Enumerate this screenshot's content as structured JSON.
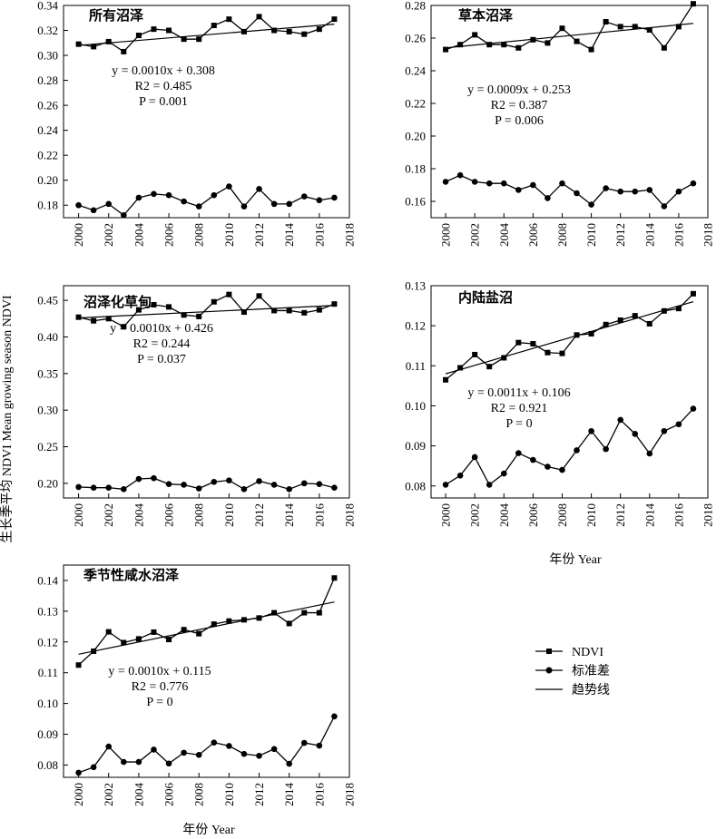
{
  "figure": {
    "ylabel": "生长季平均 NDVI Mean growing season NDVI",
    "xlabel": "年份 Year"
  },
  "legend": {
    "ndvi": "NDVI",
    "std": "标准差",
    "trend": "趋势线"
  },
  "colors": {
    "line": "#000000",
    "background": "#ffffff"
  },
  "chart_data": [
    {
      "type": "line",
      "title": "所有沼泽",
      "x": [
        2000,
        2001,
        2002,
        2003,
        2004,
        2005,
        2006,
        2007,
        2008,
        2009,
        2010,
        2011,
        2012,
        2013,
        2014,
        2015,
        2016,
        2017
      ],
      "xlim": [
        1999,
        2018
      ],
      "xticks": [
        "2000",
        "2002",
        "2004",
        "2006",
        "2008",
        "2010",
        "2012",
        "2014",
        "2016",
        "2018"
      ],
      "ylim": [
        0.17,
        0.34
      ],
      "yticks": [
        "0.18",
        "0.20",
        "0.22",
        "0.24",
        "0.26",
        "0.28",
        "0.30",
        "0.32",
        "0.34"
      ],
      "series": [
        {
          "name": "NDVI",
          "marker": "square",
          "values": [
            0.309,
            0.307,
            0.311,
            0.303,
            0.316,
            0.321,
            0.32,
            0.313,
            0.313,
            0.324,
            0.329,
            0.319,
            0.331,
            0.32,
            0.319,
            0.317,
            0.321,
            0.329
          ]
        },
        {
          "name": "标准差",
          "marker": "circle",
          "values": [
            0.18,
            0.176,
            0.181,
            0.172,
            0.186,
            0.189,
            0.188,
            0.183,
            0.179,
            0.188,
            0.195,
            0.179,
            0.193,
            0.181,
            0.181,
            0.187,
            0.184,
            0.186
          ]
        }
      ],
      "trend": {
        "x": [
          2000,
          2017
        ],
        "y": [
          0.308,
          0.325
        ]
      },
      "equation": {
        "eq": "y = 0.0010x + 0.308",
        "r2": "R2 = 0.485",
        "p": "P = 0.001"
      },
      "grid": false
    },
    {
      "type": "line",
      "title": "草本沼泽",
      "x": [
        2000,
        2001,
        2002,
        2003,
        2004,
        2005,
        2006,
        2007,
        2008,
        2009,
        2010,
        2011,
        2012,
        2013,
        2014,
        2015,
        2016,
        2017
      ],
      "xlim": [
        1999,
        2018
      ],
      "xticks": [
        "2000",
        "2002",
        "2004",
        "2006",
        "2008",
        "2010",
        "2012",
        "2014",
        "2016",
        "2018"
      ],
      "ylim": [
        0.15,
        0.28
      ],
      "yticks": [
        "0.16",
        "0.18",
        "0.20",
        "0.22",
        "0.24",
        "0.26",
        "0.28"
      ],
      "series": [
        {
          "name": "NDVI",
          "marker": "square",
          "values": [
            0.253,
            0.256,
            0.262,
            0.256,
            0.256,
            0.254,
            0.259,
            0.257,
            0.266,
            0.258,
            0.253,
            0.27,
            0.267,
            0.267,
            0.265,
            0.254,
            0.267,
            0.281
          ]
        },
        {
          "name": "标准差",
          "marker": "circle",
          "values": [
            0.172,
            0.176,
            0.172,
            0.171,
            0.171,
            0.167,
            0.17,
            0.162,
            0.171,
            0.165,
            0.158,
            0.168,
            0.166,
            0.166,
            0.167,
            0.157,
            0.166,
            0.171
          ]
        }
      ],
      "trend": {
        "x": [
          2000,
          2017
        ],
        "y": [
          0.254,
          0.269
        ]
      },
      "equation": {
        "eq": "y = 0.0009x + 0.253",
        "r2": "R2 = 0.387",
        "p": "P = 0.006"
      },
      "grid": false
    },
    {
      "type": "line",
      "title": "沼泽化草甸",
      "x": [
        2000,
        2001,
        2002,
        2003,
        2004,
        2005,
        2006,
        2007,
        2008,
        2009,
        2010,
        2011,
        2012,
        2013,
        2014,
        2015,
        2016,
        2017
      ],
      "xlim": [
        1999,
        2018
      ],
      "xticks": [
        "2000",
        "2002",
        "2004",
        "2006",
        "2008",
        "2010",
        "2012",
        "2014",
        "2016",
        "2018"
      ],
      "ylim": [
        0.18,
        0.47
      ],
      "yticks": [
        "0.20",
        "0.25",
        "0.30",
        "0.35",
        "0.40",
        "0.45"
      ],
      "series": [
        {
          "name": "NDVI",
          "marker": "square",
          "values": [
            0.427,
            0.422,
            0.425,
            0.414,
            0.437,
            0.444,
            0.441,
            0.43,
            0.428,
            0.448,
            0.458,
            0.434,
            0.456,
            0.436,
            0.436,
            0.433,
            0.437,
            0.445
          ]
        },
        {
          "name": "标准差",
          "marker": "circle",
          "values": [
            0.195,
            0.194,
            0.194,
            0.192,
            0.206,
            0.207,
            0.199,
            0.198,
            0.193,
            0.202,
            0.204,
            0.192,
            0.203,
            0.198,
            0.192,
            0.2,
            0.199,
            0.194
          ]
        }
      ],
      "trend": {
        "x": [
          2000,
          2017
        ],
        "y": [
          0.426,
          0.443
        ]
      },
      "equation": {
        "eq": "y = 0.0010x + 0.426",
        "r2": "R2 = 0.244",
        "p": "P = 0.037"
      },
      "grid": false
    },
    {
      "type": "line",
      "title": "内陆盐沼",
      "x": [
        2000,
        2001,
        2002,
        2003,
        2004,
        2005,
        2006,
        2007,
        2008,
        2009,
        2010,
        2011,
        2012,
        2013,
        2014,
        2015,
        2016,
        2017
      ],
      "xlim": [
        1999,
        2018
      ],
      "xticks": [
        "2000",
        "2002",
        "2004",
        "2006",
        "2008",
        "2010",
        "2012",
        "2014",
        "2016",
        "2018"
      ],
      "ylim": [
        0.077,
        0.13
      ],
      "yticks": [
        "0.08",
        "0.09",
        "0.10",
        "0.11",
        "0.12",
        "0.13"
      ],
      "series": [
        {
          "name": "NDVI",
          "marker": "square",
          "values": [
            0.1065,
            0.1095,
            0.1128,
            0.1098,
            0.112,
            0.1158,
            0.1155,
            0.1133,
            0.1131,
            0.1177,
            0.118,
            0.1203,
            0.1214,
            0.1225,
            0.1205,
            0.1237,
            0.1243,
            0.128
          ]
        },
        {
          "name": "标准差",
          "marker": "circle",
          "values": [
            0.0803,
            0.0826,
            0.0872,
            0.0803,
            0.0831,
            0.0882,
            0.0865,
            0.0848,
            0.084,
            0.0889,
            0.0937,
            0.0892,
            0.0965,
            0.093,
            0.0881,
            0.0937,
            0.0954,
            0.0993
          ]
        }
      ],
      "trend": {
        "x": [
          2000,
          2017
        ],
        "y": [
          0.108,
          0.126
        ]
      },
      "equation": {
        "eq": "y = 0.0011x + 0.106",
        "r2": "R2 = 0.921",
        "p": "P = 0"
      },
      "grid": false
    },
    {
      "type": "line",
      "title": "季节性咸水沼泽",
      "x": [
        2000,
        2001,
        2002,
        2003,
        2004,
        2005,
        2006,
        2007,
        2008,
        2009,
        2010,
        2011,
        2012,
        2013,
        2014,
        2015,
        2016,
        2017
      ],
      "xlim": [
        1999,
        2018
      ],
      "xticks": [
        "2000",
        "2002",
        "2004",
        "2006",
        "2008",
        "2010",
        "2012",
        "2014",
        "2016",
        "2018"
      ],
      "ylim": [
        0.076,
        0.145
      ],
      "yticks": [
        "0.08",
        "0.09",
        "0.10",
        "0.11",
        "0.12",
        "0.13",
        "0.14"
      ],
      "series": [
        {
          "name": "NDVI",
          "marker": "square",
          "values": [
            0.1125,
            0.117,
            0.1233,
            0.1198,
            0.121,
            0.1232,
            0.1208,
            0.124,
            0.1227,
            0.1258,
            0.1268,
            0.1272,
            0.1278,
            0.1295,
            0.126,
            0.1295,
            0.1295,
            0.1408
          ]
        },
        {
          "name": "标准差",
          "marker": "circle",
          "values": [
            0.0775,
            0.0793,
            0.086,
            0.081,
            0.081,
            0.085,
            0.0805,
            0.084,
            0.0833,
            0.0873,
            0.0862,
            0.0836,
            0.083,
            0.0852,
            0.0804,
            0.0872,
            0.0863,
            0.0958
          ]
        }
      ],
      "trend": {
        "x": [
          2000,
          2017
        ],
        "y": [
          0.116,
          0.133
        ]
      },
      "equation": {
        "eq": "y = 0.0010x + 0.115",
        "r2": "R2 = 0.776",
        "p": "P = 0"
      },
      "grid": false
    }
  ]
}
